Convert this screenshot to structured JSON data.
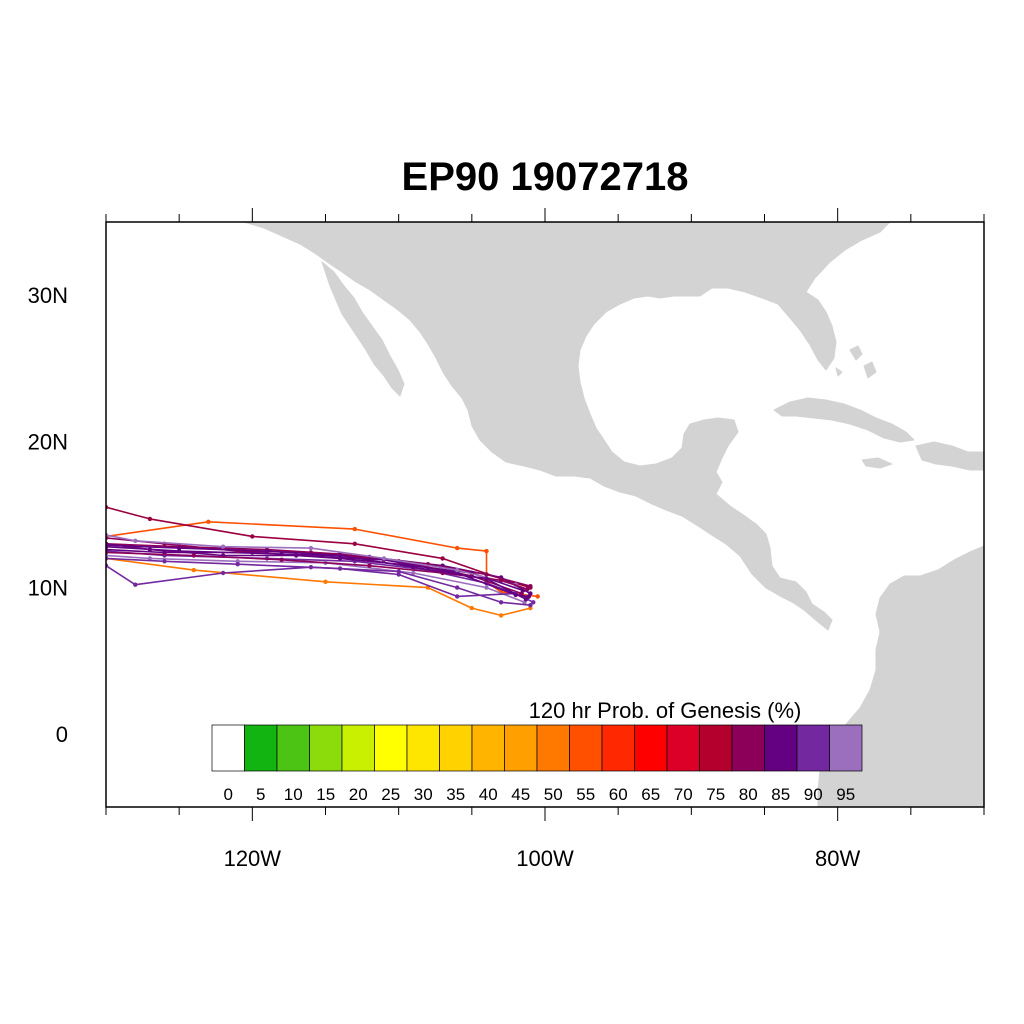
{
  "title": "EP90 19072718",
  "map": {
    "lon_range": [
      -130,
      -70
    ],
    "lat_range": [
      -5,
      35
    ],
    "land_color": "#d3d3d3",
    "ocean_color": "#ffffff",
    "x_ticks": [
      {
        "lon": -120,
        "label": "120W"
      },
      {
        "lon": -100,
        "label": "100W"
      },
      {
        "lon": -80,
        "label": "80W"
      }
    ],
    "y_ticks": [
      {
        "lat": 30,
        "label": "30N"
      },
      {
        "lat": 20,
        "label": "20N"
      },
      {
        "lat": 10,
        "label": "10N"
      },
      {
        "lat": 0,
        "label": "0"
      }
    ]
  },
  "colorbar": {
    "title": "120 hr Prob. of Genesis (%)",
    "labels": [
      "0",
      "5",
      "10",
      "15",
      "20",
      "25",
      "30",
      "35",
      "40",
      "45",
      "50",
      "55",
      "60",
      "65",
      "70",
      "75",
      "80",
      "85",
      "90",
      "95"
    ],
    "colors": [
      "#ffffff",
      "#11b411",
      "#4cc414",
      "#8cdc0c",
      "#c8f000",
      "#ffff00",
      "#ffe600",
      "#ffd200",
      "#ffb400",
      "#ffa000",
      "#ff7800",
      "#ff5000",
      "#ff2800",
      "#ff0000",
      "#dc0028",
      "#b4002d",
      "#8c005a",
      "#640082",
      "#7328a0",
      "#9b6ebe"
    ]
  },
  "chart_data": {
    "type": "scatter",
    "series": [
      {
        "color": "#ff5000",
        "points": [
          [
            -130,
            13.5
          ],
          [
            -123,
            14.5
          ],
          [
            -113,
            14.0
          ],
          [
            -106,
            12.7
          ],
          [
            -104,
            12.5
          ],
          [
            -104,
            10.4
          ],
          [
            -103,
            9.7
          ],
          [
            -100.5,
            9.4
          ]
        ]
      },
      {
        "color": "#9b0040",
        "points": [
          [
            -130,
            15.5
          ],
          [
            -127,
            14.7
          ],
          [
            -120,
            13.5
          ],
          [
            -113,
            13.0
          ],
          [
            -107,
            12.0
          ],
          [
            -103,
            10.6
          ],
          [
            -101,
            10.0
          ]
        ]
      },
      {
        "color": "#ff7800",
        "points": [
          [
            -130,
            12.0
          ],
          [
            -124,
            11.2
          ],
          [
            -115,
            10.4
          ],
          [
            -108,
            10.0
          ],
          [
            -105,
            8.6
          ],
          [
            -103,
            8.1
          ],
          [
            -101,
            8.6
          ]
        ]
      },
      {
        "color": "#640082",
        "points": [
          [
            -130,
            12.8
          ],
          [
            -125,
            12.5
          ],
          [
            -118,
            12.3
          ],
          [
            -112,
            12.1
          ],
          [
            -107,
            11.5
          ],
          [
            -103,
            10.7
          ],
          [
            -101,
            9.6
          ]
        ]
      },
      {
        "color": "#7328a0",
        "points": [
          [
            -130,
            12.5
          ],
          [
            -126,
            12.2
          ],
          [
            -119,
            12.0
          ],
          [
            -113,
            11.8
          ],
          [
            -108,
            11.2
          ],
          [
            -104,
            10.3
          ],
          [
            -101.2,
            9.3
          ]
        ]
      },
      {
        "color": "#8c005a",
        "points": [
          [
            -130,
            13.0
          ],
          [
            -125,
            12.8
          ],
          [
            -119,
            12.6
          ],
          [
            -114,
            12.3
          ],
          [
            -108,
            11.6
          ],
          [
            -104,
            10.9
          ],
          [
            -101,
            10.1
          ]
        ]
      },
      {
        "color": "#9b6ebe",
        "points": [
          [
            -130,
            12.2
          ],
          [
            -127,
            12.0
          ],
          [
            -121,
            11.8
          ],
          [
            -115,
            11.7
          ],
          [
            -109,
            11.0
          ],
          [
            -104,
            10.0
          ],
          [
            -101.4,
            9.0
          ]
        ]
      },
      {
        "color": "#7328a0",
        "points": [
          [
            -130,
            11.5
          ],
          [
            -128,
            10.2
          ],
          [
            -122,
            11.0
          ],
          [
            -116,
            11.4
          ],
          [
            -110,
            11.1
          ],
          [
            -106,
            10.0
          ],
          [
            -103,
            9.0
          ],
          [
            -101,
            8.8
          ]
        ]
      },
      {
        "color": "#640082",
        "points": [
          [
            -130,
            12.6
          ],
          [
            -126,
            12.4
          ],
          [
            -120,
            12.4
          ],
          [
            -114,
            12.0
          ],
          [
            -109,
            11.5
          ],
          [
            -105,
            11.0
          ],
          [
            -101.5,
            9.8
          ]
        ]
      },
      {
        "color": "#8c005a",
        "points": [
          [
            -130,
            13.4
          ],
          [
            -126,
            13.0
          ],
          [
            -121,
            12.5
          ],
          [
            -116,
            12.4
          ],
          [
            -110,
            11.8
          ],
          [
            -105,
            10.8
          ],
          [
            -101.6,
            9.6
          ]
        ]
      },
      {
        "color": "#7328a0",
        "points": [
          [
            -130,
            12.0
          ],
          [
            -126,
            11.8
          ],
          [
            -121,
            11.6
          ],
          [
            -114,
            11.3
          ],
          [
            -110,
            10.9
          ],
          [
            -106,
            9.4
          ],
          [
            -102,
            9.6
          ],
          [
            -100.8,
            9.0
          ]
        ]
      },
      {
        "color": "#640082",
        "points": [
          [
            -130,
            13.0
          ],
          [
            -127,
            12.6
          ],
          [
            -122,
            12.2
          ],
          [
            -117,
            12.2
          ],
          [
            -111,
            11.9
          ],
          [
            -106,
            11.0
          ],
          [
            -102,
            9.5
          ],
          [
            -101.1,
            9.4
          ]
        ]
      },
      {
        "color": "#9b6ebe",
        "points": [
          [
            -130,
            13.6
          ],
          [
            -128,
            13.2
          ],
          [
            -122,
            12.8
          ],
          [
            -116,
            12.7
          ],
          [
            -111,
            12.0
          ],
          [
            -106,
            11.2
          ],
          [
            -102,
            10.2
          ]
        ]
      },
      {
        "color": "#8c005a",
        "points": [
          [
            -130,
            12.4
          ],
          [
            -124,
            12.2
          ],
          [
            -118,
            11.9
          ],
          [
            -112,
            11.5
          ],
          [
            -107,
            11.0
          ],
          [
            -103,
            10.5
          ],
          [
            -101.2,
            9.9
          ]
        ]
      },
      {
        "color": "#640082",
        "points": [
          [
            -130,
            12.9
          ],
          [
            -125,
            12.7
          ],
          [
            -119,
            12.5
          ],
          [
            -114,
            12.2
          ],
          [
            -109,
            11.4
          ],
          [
            -104,
            10.6
          ],
          [
            -101.3,
            9.2
          ]
        ]
      }
    ]
  }
}
